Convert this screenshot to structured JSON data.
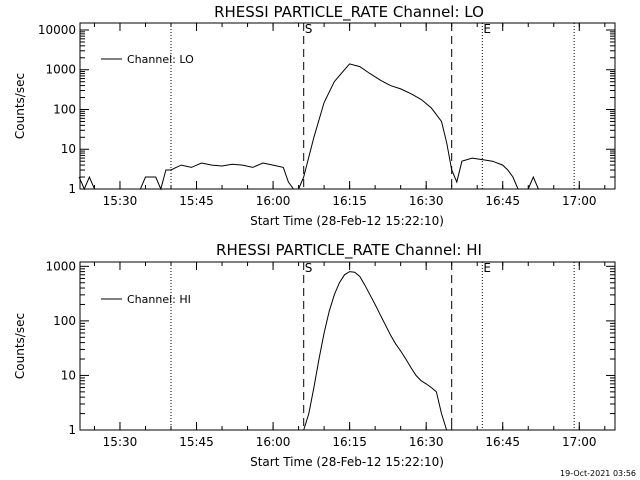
{
  "footer_timestamp": "19-Oct-2021 03:56",
  "chart_data": [
    {
      "type": "line",
      "title": "RHESSI PARTICLE_RATE Channel: LO",
      "xlabel": "Start Time (28-Feb-12 15:22:10)",
      "ylabel": "Counts/sec",
      "yscale": "log",
      "ylim": [
        1,
        15000
      ],
      "xlim": [
        "15:22",
        "17:07"
      ],
      "ytick_labels": [
        "1",
        "10",
        "100",
        "1000",
        "10000"
      ],
      "xtick_labels": [
        "15:30",
        "15:45",
        "16:00",
        "16:15",
        "16:30",
        "16:45",
        "17:00"
      ],
      "legend": "Channel: LO",
      "legend_position": "top-left",
      "markers": [
        {
          "label": "S",
          "time": "16:06",
          "style": "dashed"
        },
        {
          "label": "E",
          "time": "16:41",
          "style": "dotted"
        }
      ],
      "extra_lines": [
        {
          "time": "15:40",
          "style": "dotted"
        },
        {
          "time": "16:35",
          "style": "dashed"
        },
        {
          "time": "16:59",
          "style": "dotted"
        }
      ],
      "series": [
        {
          "x": [
            "15:22",
            "15:23",
            "15:24",
            "15:25",
            "15:26",
            "15:34",
            "15:35",
            "15:37",
            "15:38",
            "15:39",
            "15:40",
            "15:41",
            "15:42",
            "15:44",
            "15:46",
            "15:48",
            "15:50",
            "15:52",
            "15:54",
            "15:56",
            "15:58",
            "16:00",
            "16:02",
            "16:03",
            "16:04",
            "16:05",
            "16:06",
            "16:08",
            "16:10",
            "16:12",
            "16:14",
            "16:15",
            "16:17",
            "16:19",
            "16:21",
            "16:23",
            "16:25",
            "16:27",
            "16:29",
            "16:31",
            "16:33",
            "16:34",
            "16:35",
            "16:36",
            "16:37",
            "16:39",
            "16:41",
            "16:43",
            "16:45",
            "16:46",
            "16:47",
            "16:48",
            "16:49",
            "16:50",
            "16:51",
            "16:52"
          ],
          "y": [
            2,
            1,
            2,
            1,
            1,
            1,
            2,
            2,
            1,
            3,
            3,
            3.5,
            4,
            3.5,
            4.5,
            4,
            3.8,
            4.2,
            4,
            3.5,
            4.5,
            4,
            3.5,
            1.5,
            1,
            1,
            2,
            20,
            150,
            500,
            1000,
            1400,
            1200,
            800,
            550,
            400,
            330,
            250,
            180,
            110,
            50,
            15,
            3,
            1.5,
            5,
            6,
            5.5,
            5,
            4,
            3,
            2,
            1,
            1,
            1,
            2,
            1
          ]
        }
      ]
    },
    {
      "type": "line",
      "title": "RHESSI PARTICLE_RATE Channel: HI",
      "xlabel": "Start Time (28-Feb-12 15:22:10)",
      "ylabel": "Counts/sec",
      "yscale": "log",
      "ylim": [
        1,
        1200
      ],
      "xlim": [
        "15:22",
        "17:07"
      ],
      "ytick_labels": [
        "1",
        "10",
        "100",
        "1000"
      ],
      "xtick_labels": [
        "15:30",
        "15:45",
        "16:00",
        "16:15",
        "16:30",
        "16:45",
        "17:00"
      ],
      "legend": "Channel: HI",
      "legend_position": "top-left",
      "markers": [
        {
          "label": "S",
          "time": "16:06",
          "style": "dashed"
        },
        {
          "label": "E",
          "time": "16:41",
          "style": "dotted"
        }
      ],
      "extra_lines": [
        {
          "time": "15:40",
          "style": "dotted"
        },
        {
          "time": "16:35",
          "style": "dashed"
        },
        {
          "time": "16:59",
          "style": "dotted"
        }
      ],
      "series": [
        {
          "x": [
            "16:06",
            "16:07",
            "16:08",
            "16:09",
            "16:10",
            "16:11",
            "16:12",
            "16:13",
            "16:14",
            "16:15",
            "16:16",
            "16:17",
            "16:18",
            "16:19",
            "16:20",
            "16:21",
            "16:22",
            "16:23",
            "16:24",
            "16:25",
            "16:26",
            "16:27",
            "16:28",
            "16:29",
            "16:30",
            "16:31",
            "16:32",
            "16:33",
            "16:34"
          ],
          "y": [
            1,
            2,
            6,
            20,
            60,
            150,
            300,
            500,
            700,
            800,
            780,
            650,
            450,
            300,
            200,
            130,
            85,
            55,
            38,
            28,
            20,
            14,
            10,
            8,
            7,
            6,
            5,
            2,
            1
          ]
        }
      ]
    }
  ]
}
